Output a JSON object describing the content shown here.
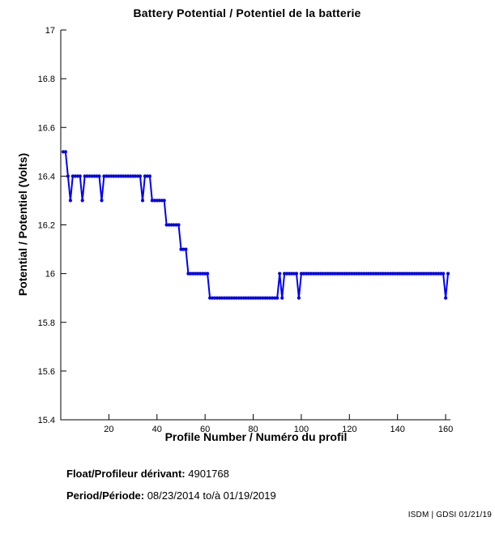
{
  "chart_data": {
    "type": "line",
    "title": "Battery Potential / Potentiel de la batterie",
    "xlabel": "Profile Number / Numéro du profil",
    "ylabel": "Potential / Potentiel (Volts)",
    "xlim": [
      0,
      162
    ],
    "ylim": [
      15.4,
      17
    ],
    "xticks": [
      20,
      40,
      60,
      80,
      100,
      120,
      140,
      160
    ],
    "yticks": [
      15.4,
      15.6,
      15.8,
      16,
      16.2,
      16.4,
      16.6,
      16.8,
      17
    ],
    "ytick_labels": [
      "15.4",
      "15.6",
      "15.8",
      "16",
      "16.2",
      "16.4",
      "16.6",
      "16.8",
      "17"
    ],
    "grid": false,
    "legend": null,
    "line_color": "#0000ee",
    "marker": "point",
    "series": [
      {
        "name": "battery-potential-volts",
        "x_start": 1,
        "x_step": 1,
        "values": [
          16.5,
          16.5,
          16.4,
          16.3,
          16.4,
          16.4,
          16.4,
          16.4,
          16.3,
          16.4,
          16.4,
          16.4,
          16.4,
          16.4,
          16.4,
          16.4,
          16.3,
          16.4,
          16.4,
          16.4,
          16.4,
          16.4,
          16.4,
          16.4,
          16.4,
          16.4,
          16.4,
          16.4,
          16.4,
          16.4,
          16.4,
          16.4,
          16.4,
          16.3,
          16.4,
          16.4,
          16.4,
          16.3,
          16.3,
          16.3,
          16.3,
          16.3,
          16.3,
          16.2,
          16.2,
          16.2,
          16.2,
          16.2,
          16.2,
          16.1,
          16.1,
          16.1,
          16.0,
          16.0,
          16.0,
          16.0,
          16.0,
          16.0,
          16.0,
          16.0,
          16.0,
          15.9,
          15.9,
          15.9,
          15.9,
          15.9,
          15.9,
          15.9,
          15.9,
          15.9,
          15.9,
          15.9,
          15.9,
          15.9,
          15.9,
          15.9,
          15.9,
          15.9,
          15.9,
          15.9,
          15.9,
          15.9,
          15.9,
          15.9,
          15.9,
          15.9,
          15.9,
          15.9,
          15.9,
          15.9,
          16.0,
          15.9,
          16.0,
          16.0,
          16.0,
          16.0,
          16.0,
          16.0,
          15.9,
          16.0,
          16.0,
          16.0,
          16.0,
          16.0,
          16.0,
          16.0,
          16.0,
          16.0,
          16.0,
          16.0,
          16.0,
          16.0,
          16.0,
          16.0,
          16.0,
          16.0,
          16.0,
          16.0,
          16.0,
          16.0,
          16.0,
          16.0,
          16.0,
          16.0,
          16.0,
          16.0,
          16.0,
          16.0,
          16.0,
          16.0,
          16.0,
          16.0,
          16.0,
          16.0,
          16.0,
          16.0,
          16.0,
          16.0,
          16.0,
          16.0,
          16.0,
          16.0,
          16.0,
          16.0,
          16.0,
          16.0,
          16.0,
          16.0,
          16.0,
          16.0,
          16.0,
          16.0,
          16.0,
          16.0,
          16.0,
          16.0,
          16.0,
          16.0,
          16.0,
          15.9,
          16.0
        ]
      }
    ]
  },
  "footer": {
    "float_label": "Float/Profileur dérivant:",
    "float_value": "4901768",
    "period_label": "Period/Période:",
    "period_value": "08/23/2014  to/à  01/19/2019",
    "credit": "ISDM | GDSI 01/21/19"
  }
}
